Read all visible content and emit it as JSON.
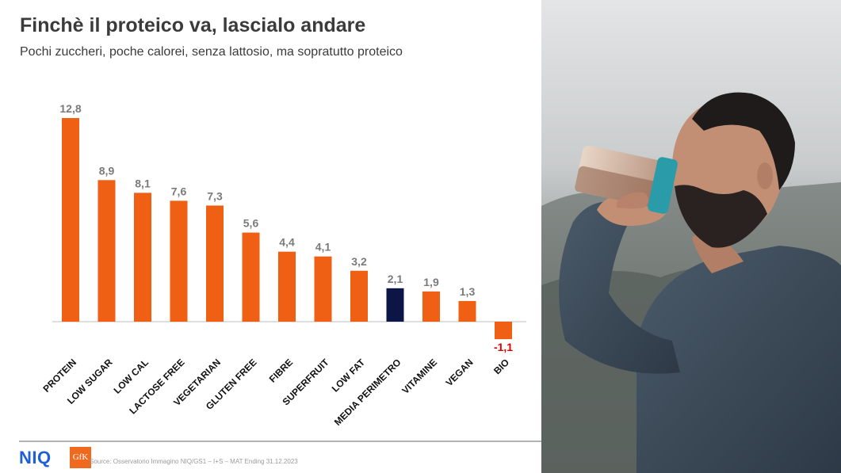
{
  "title": "Finchè il proteico va, lascialo andare",
  "subtitle": "Pochi zuccheri, poche calorei, senza lattosio, ma sopratutto proteico",
  "footer": {
    "logo_niq": "NIQ",
    "logo_gfk": "GfK",
    "source": "Source: Osservatorio Immagino NIQ/GS1 – I+S – MAT Ending 31.12.2023"
  },
  "colors": {
    "bar": "#ef5f14",
    "highlight_bar": "#0c1646",
    "negative_label": "#e00000",
    "text": "#3b3b3b"
  },
  "chart_data": {
    "type": "bar",
    "title": "",
    "xlabel": "",
    "ylabel": "",
    "categories": [
      "PROTEIN",
      "LOW SUGAR",
      "LOW CAL",
      "LACTOSE FREE",
      "VEGETARIAN",
      "GLUTEN FREE",
      "FIBRE",
      "SUPERFRUIT",
      "LOW FAT",
      "MEDIA PERIMETRO",
      "VITAMINE",
      "VEGAN",
      "BIO"
    ],
    "values": [
      12.8,
      8.9,
      8.1,
      7.6,
      7.3,
      5.6,
      4.4,
      4.1,
      3.2,
      2.1,
      1.9,
      1.3,
      -1.1
    ],
    "value_labels": [
      "12,8",
      "8,9",
      "8,1",
      "7,6",
      "7,3",
      "5,6",
      "4,4",
      "4,1",
      "3,2",
      "2,1",
      "1,9",
      "1,3",
      "-1,1"
    ],
    "highlight_category": "MEDIA PERIMETRO",
    "ylim": [
      -1.1,
      12.8
    ],
    "grid": false,
    "legend": "none"
  },
  "photo": {
    "icon": "man-drinking-protein-shake-photo"
  }
}
